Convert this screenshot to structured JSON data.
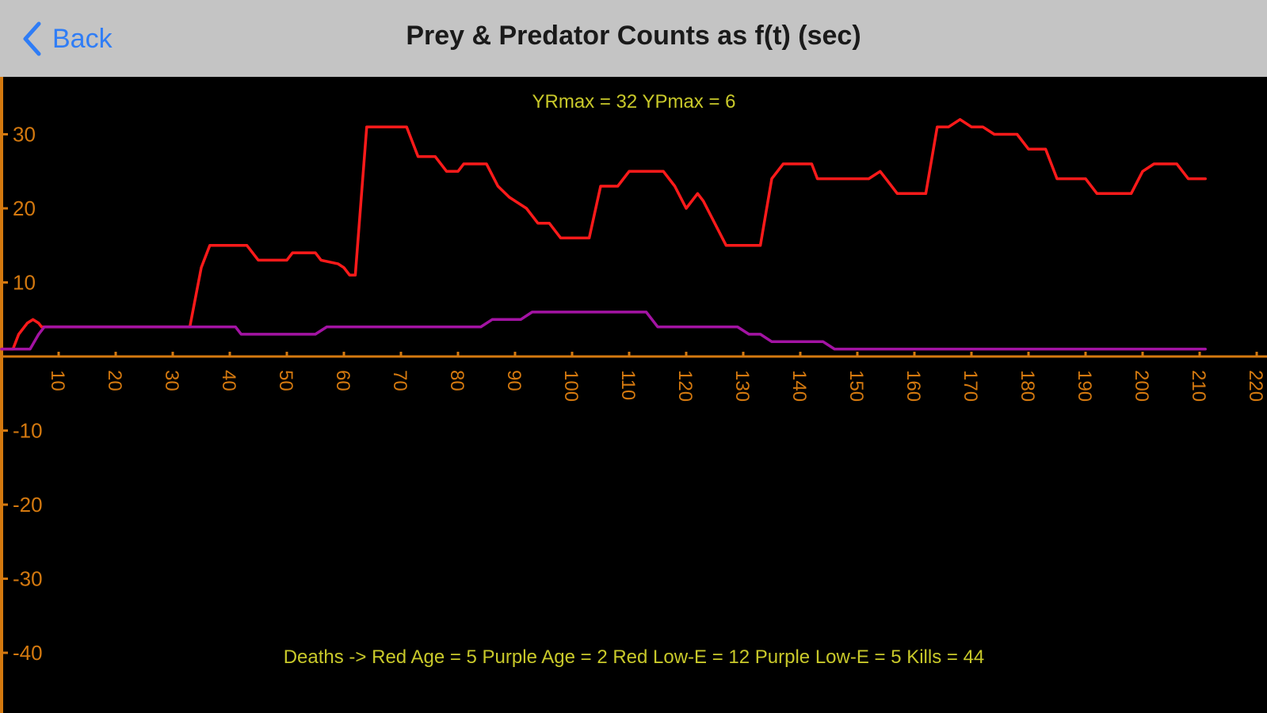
{
  "nav": {
    "back_label": "Back",
    "title": "Prey & Predator Counts as f(t) (sec)"
  },
  "colors": {
    "background": "#000000",
    "axis": "#d4790f",
    "tick_label": "#d4790f",
    "info_text": "#c9c92a",
    "prey": "#ff1a1a",
    "predator": "#a313a3",
    "back_accent": "#2f7df6",
    "navbar": "#c4c4c4"
  },
  "chart_data": {
    "type": "line",
    "title": "YRmax = 32  YPmax = 6",
    "footer": "Deaths -> Red Age = 5  Purple Age = 2  Red Low-E = 12  Purple Low-E = 5  Kills = 44",
    "xlim": [
      0,
      220
    ],
    "ylim": [
      -40,
      33
    ],
    "x_ticks": [
      10,
      20,
      30,
      40,
      50,
      60,
      70,
      80,
      90,
      100,
      110,
      120,
      130,
      140,
      150,
      160,
      170,
      180,
      190,
      200,
      210,
      220
    ],
    "y_ticks": [
      30,
      20,
      10,
      -10,
      -20,
      -30,
      -40
    ],
    "grid": false,
    "series": [
      {
        "color": "#ff1a1a",
        "points": [
          [
            0,
            1
          ],
          [
            2,
            1
          ],
          [
            3,
            3
          ],
          [
            4.5,
            4.5
          ],
          [
            5.5,
            5
          ],
          [
            6.5,
            4.5
          ],
          [
            7,
            4
          ],
          [
            33,
            4
          ],
          [
            35,
            12
          ],
          [
            36.5,
            15
          ],
          [
            43,
            15
          ],
          [
            45,
            13
          ],
          [
            50,
            13
          ],
          [
            51,
            14
          ],
          [
            55,
            14
          ],
          [
            56,
            13
          ],
          [
            59,
            12.5
          ],
          [
            60,
            12
          ],
          [
            61,
            11
          ],
          [
            62,
            11
          ],
          [
            64,
            31
          ],
          [
            71,
            31
          ],
          [
            73,
            27
          ],
          [
            76,
            27
          ],
          [
            78,
            25
          ],
          [
            80,
            25
          ],
          [
            81,
            26
          ],
          [
            85,
            26
          ],
          [
            87,
            23
          ],
          [
            89,
            21.5
          ],
          [
            92,
            20
          ],
          [
            94,
            18
          ],
          [
            96,
            18
          ],
          [
            98,
            16
          ],
          [
            103,
            16
          ],
          [
            105,
            23
          ],
          [
            108,
            23
          ],
          [
            110,
            25
          ],
          [
            116,
            25
          ],
          [
            118,
            23
          ],
          [
            120,
            20
          ],
          [
            122,
            22
          ],
          [
            123,
            21
          ],
          [
            127,
            15
          ],
          [
            133,
            15
          ],
          [
            135,
            24
          ],
          [
            137,
            26
          ],
          [
            142,
            26
          ],
          [
            143,
            24
          ],
          [
            150,
            24
          ],
          [
            152,
            24
          ],
          [
            154,
            25
          ],
          [
            155,
            24
          ],
          [
            157,
            22
          ],
          [
            162,
            22
          ],
          [
            164,
            31
          ],
          [
            166,
            31
          ],
          [
            168,
            32
          ],
          [
            170,
            31
          ],
          [
            172,
            31
          ],
          [
            174,
            30
          ],
          [
            178,
            30
          ],
          [
            180,
            28
          ],
          [
            183,
            28
          ],
          [
            185,
            24
          ],
          [
            190,
            24
          ],
          [
            192,
            22
          ],
          [
            198,
            22
          ],
          [
            200,
            25
          ],
          [
            202,
            26
          ],
          [
            206,
            26
          ],
          [
            208,
            24
          ],
          [
            211,
            24
          ]
        ]
      },
      {
        "color": "#a313a3",
        "points": [
          [
            0,
            1
          ],
          [
            5,
            1
          ],
          [
            6.5,
            3
          ],
          [
            7.5,
            4
          ],
          [
            41,
            4
          ],
          [
            42,
            3
          ],
          [
            55,
            3
          ],
          [
            57,
            4
          ],
          [
            84,
            4
          ],
          [
            86,
            5
          ],
          [
            91,
            5
          ],
          [
            93,
            6
          ],
          [
            113,
            6
          ],
          [
            115,
            4
          ],
          [
            129,
            4
          ],
          [
            131,
            3
          ],
          [
            133,
            3
          ],
          [
            135,
            2
          ],
          [
            144,
            2
          ],
          [
            146,
            1
          ],
          [
            211,
            1
          ]
        ]
      }
    ]
  }
}
